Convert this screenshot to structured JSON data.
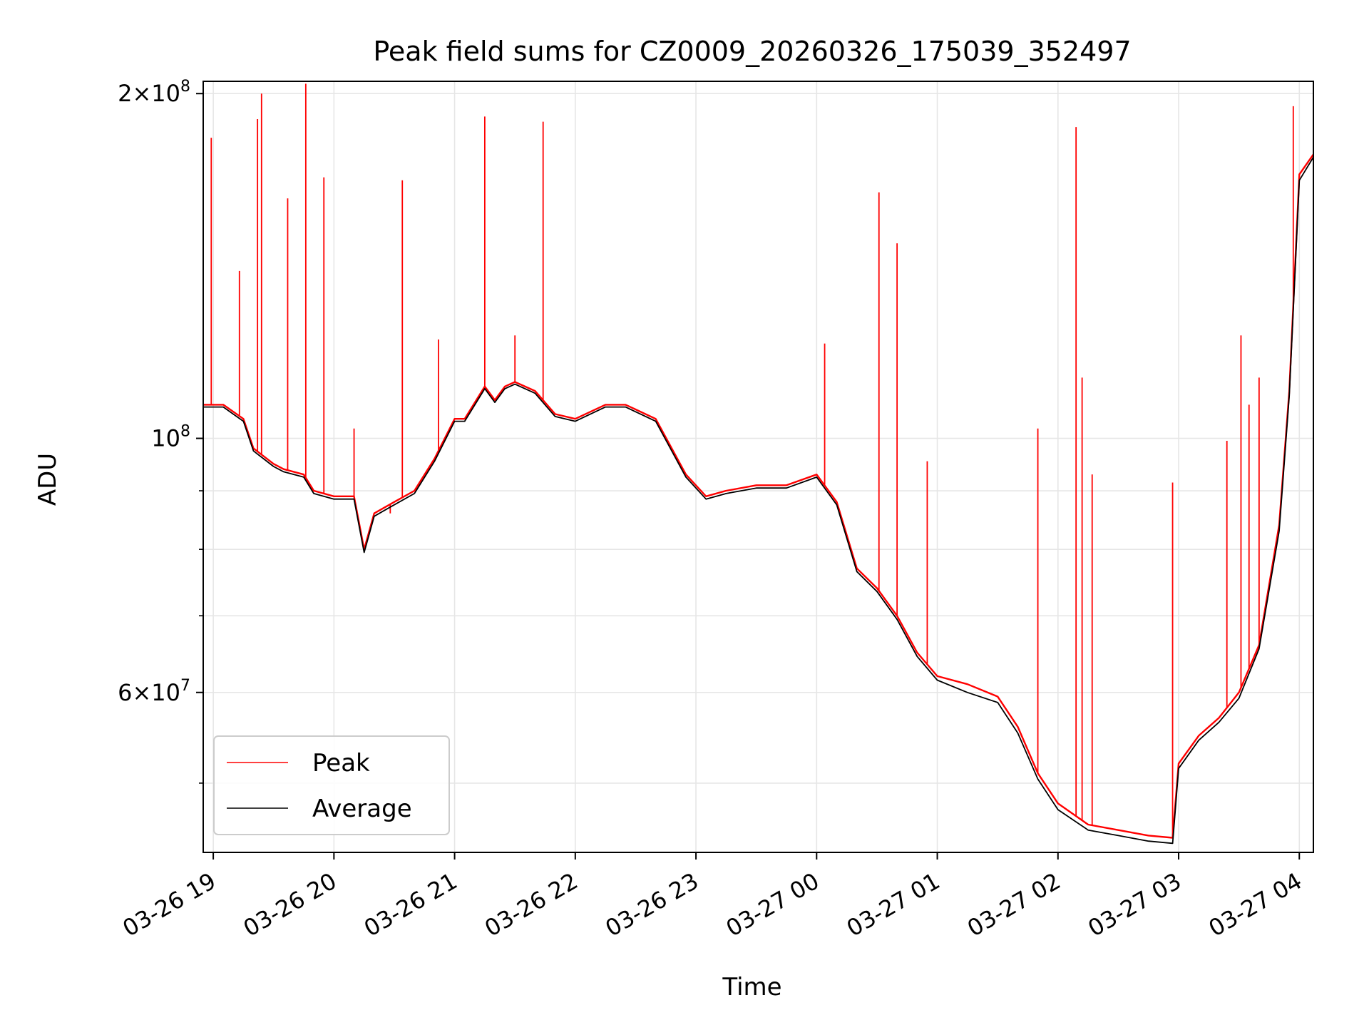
{
  "chart_data": {
    "type": "line",
    "title": "Peak field sums for CZ0009_20260326_175039_352497",
    "xlabel": "Time",
    "ylabel": "ADU",
    "x_axis_type": "datetime",
    "xlim": [
      "2026-03-26T18:55",
      "2026-03-27T04:07"
    ],
    "ylim": [
      43500000,
      205000000
    ],
    "y_scale": "log",
    "grid": true,
    "legend_position": "lower-left",
    "x_ticks": [
      {
        "value": "2026-03-26T19:00",
        "label": "03-26 19"
      },
      {
        "value": "2026-03-26T20:00",
        "label": "03-26 20"
      },
      {
        "value": "2026-03-26T21:00",
        "label": "03-26 21"
      },
      {
        "value": "2026-03-26T22:00",
        "label": "03-26 22"
      },
      {
        "value": "2026-03-26T23:00",
        "label": "03-26 23"
      },
      {
        "value": "2026-03-27T00:00",
        "label": "03-27 00"
      },
      {
        "value": "2026-03-27T01:00",
        "label": "03-27 01"
      },
      {
        "value": "2026-03-27T02:00",
        "label": "03-27 02"
      },
      {
        "value": "2026-03-27T03:00",
        "label": "03-27 03"
      },
      {
        "value": "2026-03-27T04:00",
        "label": "03-27 04"
      }
    ],
    "y_ticks_major": [
      {
        "value": 60000000,
        "mantissa": "6",
        "exponent": "7"
      },
      {
        "value": 100000000,
        "mantissa": "",
        "exponent": "8"
      },
      {
        "value": 200000000,
        "mantissa": "2",
        "exponent": "8"
      }
    ],
    "y_ticks_minor": [
      50000000,
      70000000,
      80000000,
      90000000
    ],
    "series": [
      {
        "name": "Peak",
        "color": "#ff0000",
        "x": [
          "2026-03-26T18:55",
          "2026-03-26T19:05",
          "2026-03-26T19:15",
          "2026-03-26T19:20",
          "2026-03-26T19:30",
          "2026-03-26T19:35",
          "2026-03-26T19:45",
          "2026-03-26T19:50",
          "2026-03-26T20:00",
          "2026-03-26T20:10",
          "2026-03-26T20:15",
          "2026-03-26T20:20",
          "2026-03-26T20:25",
          "2026-03-26T20:30",
          "2026-03-26T20:40",
          "2026-03-26T20:50",
          "2026-03-26T21:00",
          "2026-03-26T21:05",
          "2026-03-26T21:15",
          "2026-03-26T21:20",
          "2026-03-26T21:25",
          "2026-03-26T21:30",
          "2026-03-26T21:40",
          "2026-03-26T21:50",
          "2026-03-26T22:00",
          "2026-03-26T22:15",
          "2026-03-26T22:25",
          "2026-03-26T22:40",
          "2026-03-26T22:55",
          "2026-03-26T23:05",
          "2026-03-26T23:15",
          "2026-03-26T23:30",
          "2026-03-26T23:45",
          "2026-03-27T00:00",
          "2026-03-27T00:10",
          "2026-03-27T00:20",
          "2026-03-27T00:30",
          "2026-03-27T00:40",
          "2026-03-27T00:50",
          "2026-03-27T01:00",
          "2026-03-27T01:15",
          "2026-03-27T01:30",
          "2026-03-27T01:40",
          "2026-03-27T01:50",
          "2026-03-27T02:00",
          "2026-03-27T02:15",
          "2026-03-27T02:30",
          "2026-03-27T02:45",
          "2026-03-27T02:57",
          "2026-03-27T03:00",
          "2026-03-27T03:10",
          "2026-03-27T03:20",
          "2026-03-27T03:30",
          "2026-03-27T03:40",
          "2026-03-27T03:50",
          "2026-03-27T03:55",
          "2026-03-27T04:00",
          "2026-03-27T04:07"
        ],
        "y": [
          107000000,
          107000000,
          104000000,
          98000000,
          95000000,
          94000000,
          93000000,
          90000000,
          89000000,
          89000000,
          80000000,
          86000000,
          87000000,
          88000000,
          90000000,
          96000000,
          104000000,
          104000000,
          111000000,
          108000000,
          111000000,
          112000000,
          110000000,
          105000000,
          104000000,
          107000000,
          107000000,
          104000000,
          93000000,
          89000000,
          90000000,
          91000000,
          91000000,
          93000000,
          88000000,
          77000000,
          74000000,
          70000000,
          65000000,
          62000000,
          61000000,
          59500000,
          56000000,
          51000000,
          48000000,
          46000000,
          45500000,
          45000000,
          44800000,
          52000000,
          55000000,
          57000000,
          60000000,
          66000000,
          84000000,
          110000000,
          170000000,
          177000000
        ],
        "spikes": [
          {
            "x": "2026-03-26T18:59",
            "y": 183000000
          },
          {
            "x": "2026-03-26T19:13",
            "y": 140000000
          },
          {
            "x": "2026-03-26T19:22",
            "y": 190000000
          },
          {
            "x": "2026-03-26T19:24",
            "y": 200000000
          },
          {
            "x": "2026-03-26T19:37",
            "y": 162000000
          },
          {
            "x": "2026-03-26T19:46",
            "y": 204000000
          },
          {
            "x": "2026-03-26T19:55",
            "y": 169000000
          },
          {
            "x": "2026-03-26T20:10",
            "y": 102000000
          },
          {
            "x": "2026-03-26T20:28",
            "y": 86000000
          },
          {
            "x": "2026-03-26T20:34",
            "y": 168000000
          },
          {
            "x": "2026-03-26T20:52",
            "y": 122000000
          },
          {
            "x": "2026-03-26T21:15",
            "y": 191000000
          },
          {
            "x": "2026-03-26T21:30",
            "y": 123000000
          },
          {
            "x": "2026-03-26T21:44",
            "y": 189000000
          },
          {
            "x": "2026-03-27T00:04",
            "y": 121000000
          },
          {
            "x": "2026-03-27T00:31",
            "y": 164000000
          },
          {
            "x": "2026-03-27T00:40",
            "y": 148000000
          },
          {
            "x": "2026-03-27T00:55",
            "y": 95500000
          },
          {
            "x": "2026-03-27T01:50",
            "y": 102000000
          },
          {
            "x": "2026-03-27T02:09",
            "y": 187000000
          },
          {
            "x": "2026-03-27T02:12",
            "y": 113000000
          },
          {
            "x": "2026-03-27T02:17",
            "y": 93000000
          },
          {
            "x": "2026-03-27T02:57",
            "y": 91500000
          },
          {
            "x": "2026-03-27T03:24",
            "y": 99500000
          },
          {
            "x": "2026-03-27T03:31",
            "y": 123000000
          },
          {
            "x": "2026-03-27T03:35",
            "y": 107000000
          },
          {
            "x": "2026-03-27T03:40",
            "y": 113000000
          },
          {
            "x": "2026-03-27T03:57",
            "y": 195000000
          }
        ]
      },
      {
        "name": "Average",
        "color": "#000000",
        "x": [
          "2026-03-26T18:55",
          "2026-03-26T19:05",
          "2026-03-26T19:15",
          "2026-03-26T19:20",
          "2026-03-26T19:30",
          "2026-03-26T19:35",
          "2026-03-26T19:45",
          "2026-03-26T19:50",
          "2026-03-26T20:00",
          "2026-03-26T20:10",
          "2026-03-26T20:15",
          "2026-03-26T20:20",
          "2026-03-26T20:25",
          "2026-03-26T20:30",
          "2026-03-26T20:40",
          "2026-03-26T20:50",
          "2026-03-26T21:00",
          "2026-03-26T21:05",
          "2026-03-26T21:15",
          "2026-03-26T21:20",
          "2026-03-26T21:25",
          "2026-03-26T21:30",
          "2026-03-26T21:40",
          "2026-03-26T21:50",
          "2026-03-26T22:00",
          "2026-03-26T22:15",
          "2026-03-26T22:25",
          "2026-03-26T22:40",
          "2026-03-26T22:55",
          "2026-03-26T23:05",
          "2026-03-26T23:15",
          "2026-03-26T23:30",
          "2026-03-26T23:45",
          "2026-03-27T00:00",
          "2026-03-27T00:10",
          "2026-03-27T00:20",
          "2026-03-27T00:30",
          "2026-03-27T00:40",
          "2026-03-27T00:50",
          "2026-03-27T01:00",
          "2026-03-27T01:15",
          "2026-03-27T01:30",
          "2026-03-27T01:40",
          "2026-03-27T01:50",
          "2026-03-27T02:00",
          "2026-03-27T02:15",
          "2026-03-27T02:30",
          "2026-03-27T02:45",
          "2026-03-27T02:57",
          "2026-03-27T03:00",
          "2026-03-27T03:10",
          "2026-03-27T03:20",
          "2026-03-27T03:30",
          "2026-03-27T03:40",
          "2026-03-27T03:50",
          "2026-03-27T03:55",
          "2026-03-27T04:00",
          "2026-03-27T04:07"
        ],
        "y": [
          106500000,
          106500000,
          103500000,
          97500000,
          94500000,
          93500000,
          92500000,
          89500000,
          88500000,
          88500000,
          79500000,
          85500000,
          86500000,
          87500000,
          89500000,
          95500000,
          103500000,
          103500000,
          110500000,
          107500000,
          110500000,
          111500000,
          109500000,
          104500000,
          103500000,
          106500000,
          106500000,
          103500000,
          92500000,
          88500000,
          89500000,
          90500000,
          90500000,
          92500000,
          87500000,
          76500000,
          73500000,
          69500000,
          64500000,
          61500000,
          60000000,
          58800000,
          55300000,
          50400000,
          47400000,
          45500000,
          45000000,
          44500000,
          44300000,
          51500000,
          54500000,
          56500000,
          59300000,
          65500000,
          83000000,
          109000000,
          168000000,
          176000000
        ],
        "spikes": []
      }
    ]
  }
}
